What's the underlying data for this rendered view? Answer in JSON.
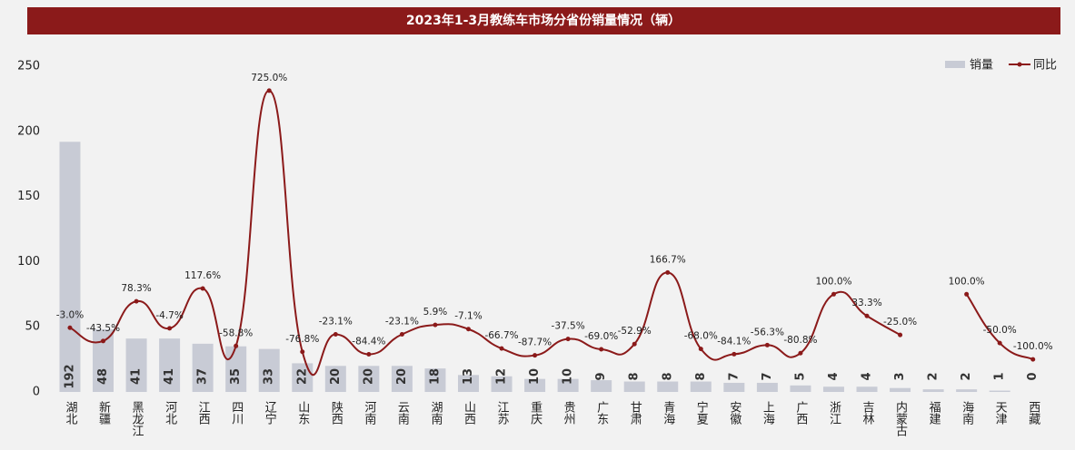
{
  "chart_data": {
    "type": "bar-line",
    "title": "2023年1-3月教练车市场分省份销量情况（辆）",
    "categories": [
      "湖北",
      "新疆",
      "黑龙江",
      "河北",
      "江西",
      "四川",
      "辽宁",
      "山东",
      "陕西",
      "河南",
      "云南",
      "湖南",
      "山西",
      "江苏",
      "重庆",
      "贵州",
      "广东",
      "甘肃",
      "青海",
      "宁夏",
      "安徽",
      "上海",
      "广西",
      "浙江",
      "吉林",
      "内蒙古",
      "福建",
      "海南",
      "天津",
      "西藏"
    ],
    "series": [
      {
        "name": "销量",
        "type": "bar",
        "color": "#c8cbd5",
        "values": [
          192,
          48,
          41,
          41,
          37,
          35,
          33,
          22,
          20,
          20,
          20,
          18,
          13,
          12,
          10,
          10,
          9,
          8,
          8,
          8,
          7,
          7,
          5,
          4,
          4,
          3,
          2,
          2,
          1,
          0
        ]
      },
      {
        "name": "同比",
        "type": "line",
        "axis": "y2",
        "color": "#8b1a1a",
        "values": [
          -3.0,
          -43.5,
          78.3,
          -4.7,
          117.6,
          -58.8,
          725.0,
          -76.8,
          -23.1,
          -84.4,
          -23.1,
          5.9,
          -7.1,
          -66.7,
          -87.7,
          -37.5,
          -69.0,
          -52.9,
          166.7,
          -68.0,
          -84.1,
          -56.3,
          -80.8,
          100.0,
          33.3,
          -25.0,
          null,
          100.0,
          -50.0,
          -100.0
        ],
        "value_labels": [
          "-3.0%",
          "-43.5%",
          "78.3%",
          "-4.7%",
          "117.6%",
          "-58.8%",
          "725.0%",
          "-76.8%",
          "-23.1%",
          "-84.4%",
          "-23.1%",
          "5.9%",
          "-7.1%",
          "-66.7%",
          "-87.7%",
          "-37.5%",
          "-69.0%",
          "-52.9%",
          "166.7%",
          "-68.0%",
          "-84.1%",
          "-56.3%",
          "-80.8%",
          "100.0%",
          "33.3%",
          "-25.0%",
          null,
          "100.0%",
          "-50.0%",
          "-100.0%"
        ]
      }
    ],
    "ylim": [
      0,
      250
    ],
    "yticks": [
      0,
      50,
      100,
      150,
      200,
      250
    ],
    "y2lim": [
      -200,
      800
    ],
    "legend": "top-right",
    "grid": false
  }
}
